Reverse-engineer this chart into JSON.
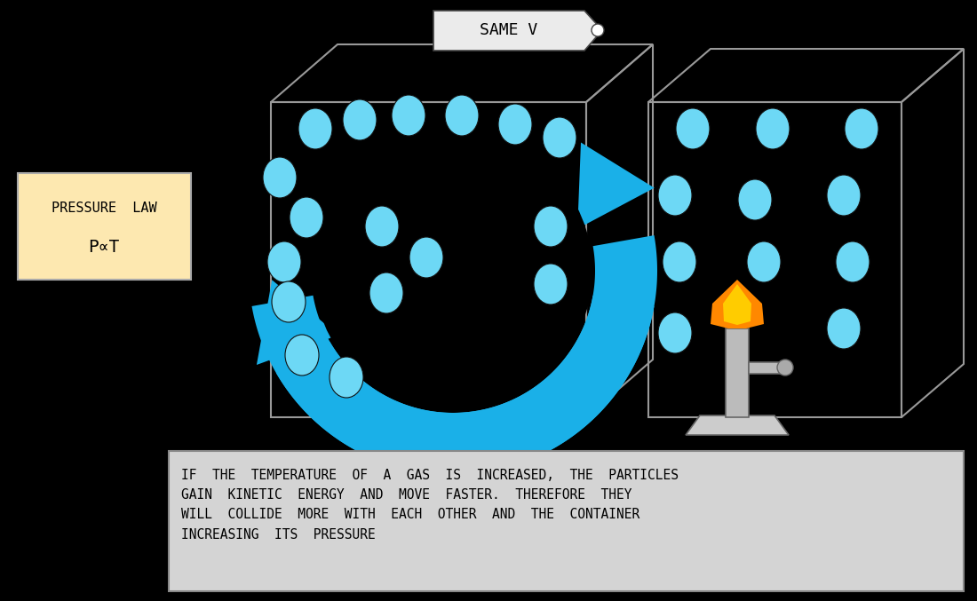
{
  "bg_color": "#000000",
  "title_text": "SAME V",
  "title_box_color": "#e8e8e8",
  "pressure_law_box_color": "#fde8b0",
  "pressure_law_text1": "PRESSURE  LAW",
  "pressure_law_text2": "P∝T",
  "description_text": "IF  THE  TEMPERATURE  OF  A  GAS  IS  INCREASED,  THE  PARTICLES\nGAIN  KINETIC  ENERGY  AND  MOVE  FASTER.  THEREFORE  THEY\nWILL  COLLIDE  MORE  WITH  EACH  OTHER  AND  THE  CONTAINER\nINCREASING  ITS  PRESSURE",
  "description_box_color": "#d4d4d4",
  "arrow_color": "#1ab0e8",
  "particle_color": "#6dd8f5",
  "flame_yellow": "#ffcc00",
  "flame_orange": "#ff8800",
  "tag_color": "#e8e8e8",
  "box_line_color": "#999999",
  "burner_body": "#cccccc",
  "burner_dark": "#888888"
}
